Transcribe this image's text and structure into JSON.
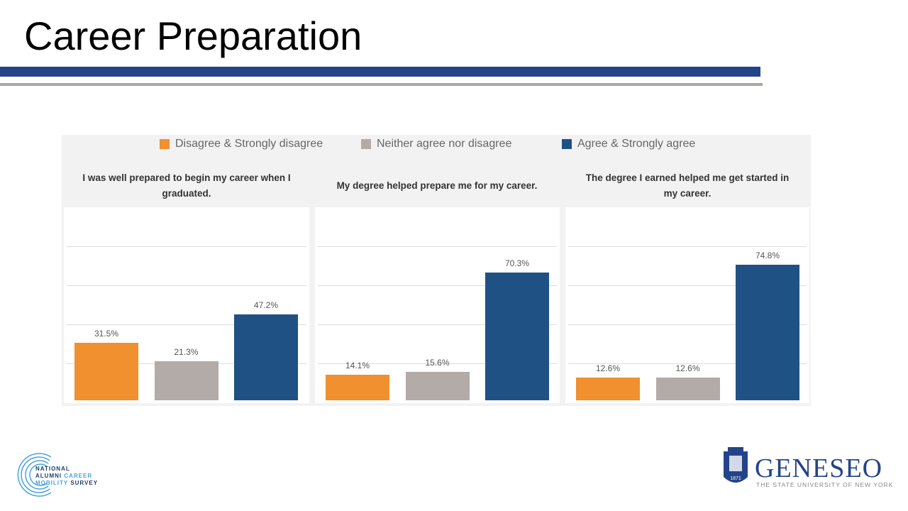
{
  "slide": {
    "title": "Career Preparation"
  },
  "colors": {
    "disagree": "#f0902f",
    "neutral": "#b3aba7",
    "agree": "#1f5185"
  },
  "chart_data": {
    "type": "bar",
    "legend": {
      "position": "top",
      "entries": [
        "Disagree & Strongly disagree",
        "Neither agree nor disagree",
        "Agree & Strongly agree"
      ]
    },
    "categories": [
      "Disagree & Strongly disagree",
      "Neither agree nor disagree",
      "Agree & Strongly agree"
    ],
    "grid": true,
    "ylim": [
      0,
      100
    ],
    "charts": [
      {
        "title": "I was well prepared to begin my career when I graduated.",
        "values": [
          31.5,
          21.3,
          47.2
        ],
        "labels": [
          "31.5%",
          "21.3%",
          "47.2%"
        ]
      },
      {
        "title": "My degree helped prepare me for my career.",
        "values": [
          14.1,
          15.6,
          70.3
        ],
        "labels": [
          "14.1%",
          "15.6%",
          "70.3%"
        ]
      },
      {
        "title": "The degree I earned helped me get started in my career.",
        "values": [
          12.6,
          12.6,
          74.8
        ],
        "labels": [
          "12.6%",
          "12.6%",
          "74.8%"
        ]
      }
    ]
  },
  "logos": {
    "left": {
      "line1": "NATIONAL",
      "line2a": "ALUMNI",
      "line2b": "CAREER",
      "line3a": "MOBILITY",
      "line3b": "SURVEY"
    },
    "right": {
      "name": "GENESEO",
      "tagline": "THE STATE UNIVERSITY OF NEW YORK",
      "year": "1871"
    }
  }
}
